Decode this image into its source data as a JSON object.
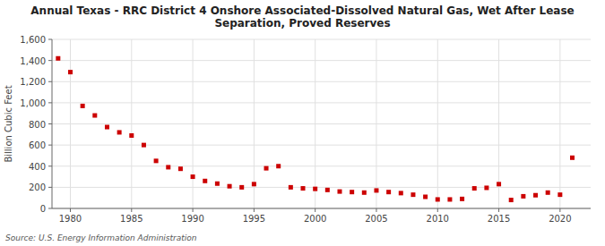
{
  "chart_data": {
    "type": "scatter",
    "title": "Annual Texas - RRC District 4 Onshore Associated-Dissolved Natural Gas, Wet After Lease\nSeparation, Proved Reserves",
    "ylabel": "Billion Cubic Feet",
    "source": "Source: U.S. Energy Information Administration",
    "x": [
      1979,
      1980,
      1981,
      1982,
      1983,
      1984,
      1985,
      1986,
      1987,
      1988,
      1989,
      1990,
      1991,
      1992,
      1993,
      1994,
      1995,
      1996,
      1997,
      1998,
      1999,
      2000,
      2001,
      2002,
      2003,
      2004,
      2005,
      2006,
      2007,
      2008,
      2009,
      2010,
      2011,
      2012,
      2013,
      2014,
      2015,
      2016,
      2017,
      2018,
      2019,
      2020,
      2021
    ],
    "values": [
      1420,
      1290,
      970,
      880,
      770,
      720,
      690,
      600,
      450,
      390,
      375,
      300,
      260,
      235,
      210,
      200,
      230,
      380,
      400,
      200,
      190,
      185,
      175,
      160,
      155,
      150,
      170,
      155,
      145,
      130,
      110,
      85,
      85,
      90,
      190,
      195,
      230,
      80,
      115,
      125,
      150,
      130,
      480
    ],
    "color": "#cc0000",
    "marker": "square",
    "xlim": [
      1978.5,
      2022.5
    ],
    "xticks": [
      1980,
      1985,
      1990,
      1995,
      2000,
      2005,
      2010,
      2015,
      2020
    ],
    "ylim": [
      0,
      1600
    ],
    "yticks": [
      0,
      200,
      400,
      600,
      800,
      {
        "value": 1000,
        "label": "1,000"
      },
      {
        "value": 1200,
        "label": "1,200"
      },
      {
        "value": 1400,
        "label": "1,400"
      },
      {
        "value": 1600,
        "label": "1,600"
      }
    ],
    "grid": true
  }
}
